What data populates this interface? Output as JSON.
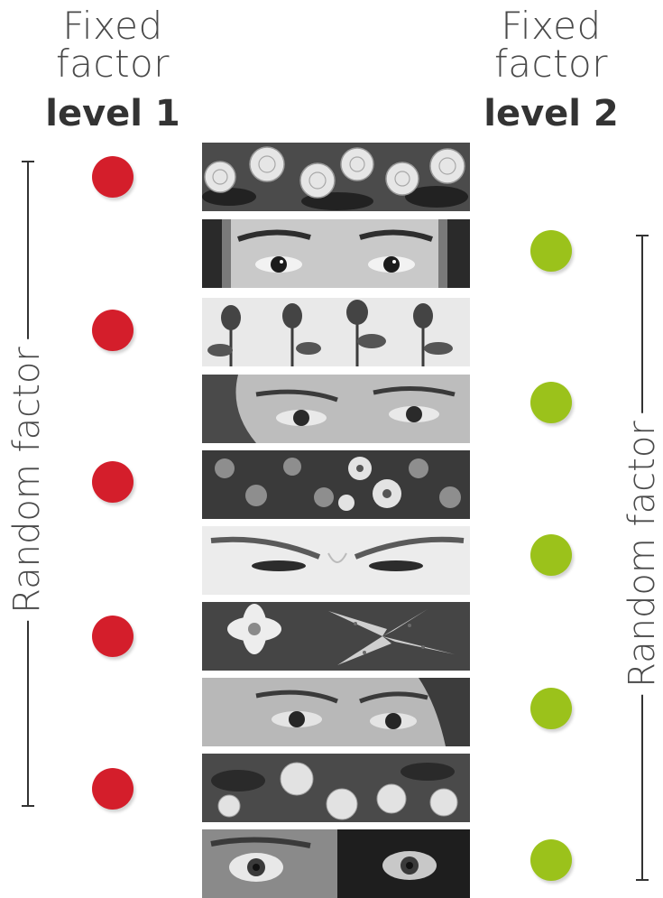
{
  "headers": {
    "left": {
      "line1": "Fixed factor",
      "line2": "level 1"
    },
    "right": {
      "line1": "Fixed factor",
      "line2": "level 2"
    }
  },
  "random_factor": {
    "left_label": "Random factor",
    "right_label": "Random factor"
  },
  "colors": {
    "level1_marker": "#d41e2b",
    "level2_marker": "#9bc21b"
  },
  "stimuli": [
    {
      "kind": "flower",
      "icon": "white-roses-image",
      "level": 1
    },
    {
      "kind": "face",
      "icon": "male-eyes-image",
      "level": 2
    },
    {
      "kind": "flower",
      "icon": "rose-buds-image",
      "level": 1
    },
    {
      "kind": "face",
      "icon": "female-eyes-image",
      "level": 2
    },
    {
      "kind": "flower",
      "icon": "small-flowers-image",
      "level": 1
    },
    {
      "kind": "face",
      "icon": "angry-eyes-image",
      "level": 2
    },
    {
      "kind": "flower",
      "icon": "daisy-lily-image",
      "level": 1
    },
    {
      "kind": "face",
      "icon": "woman-eyes-image",
      "level": 2
    },
    {
      "kind": "flower",
      "icon": "zinnias-image",
      "level": 1
    },
    {
      "kind": "face",
      "icon": "wide-eyes-image",
      "level": 2
    }
  ]
}
